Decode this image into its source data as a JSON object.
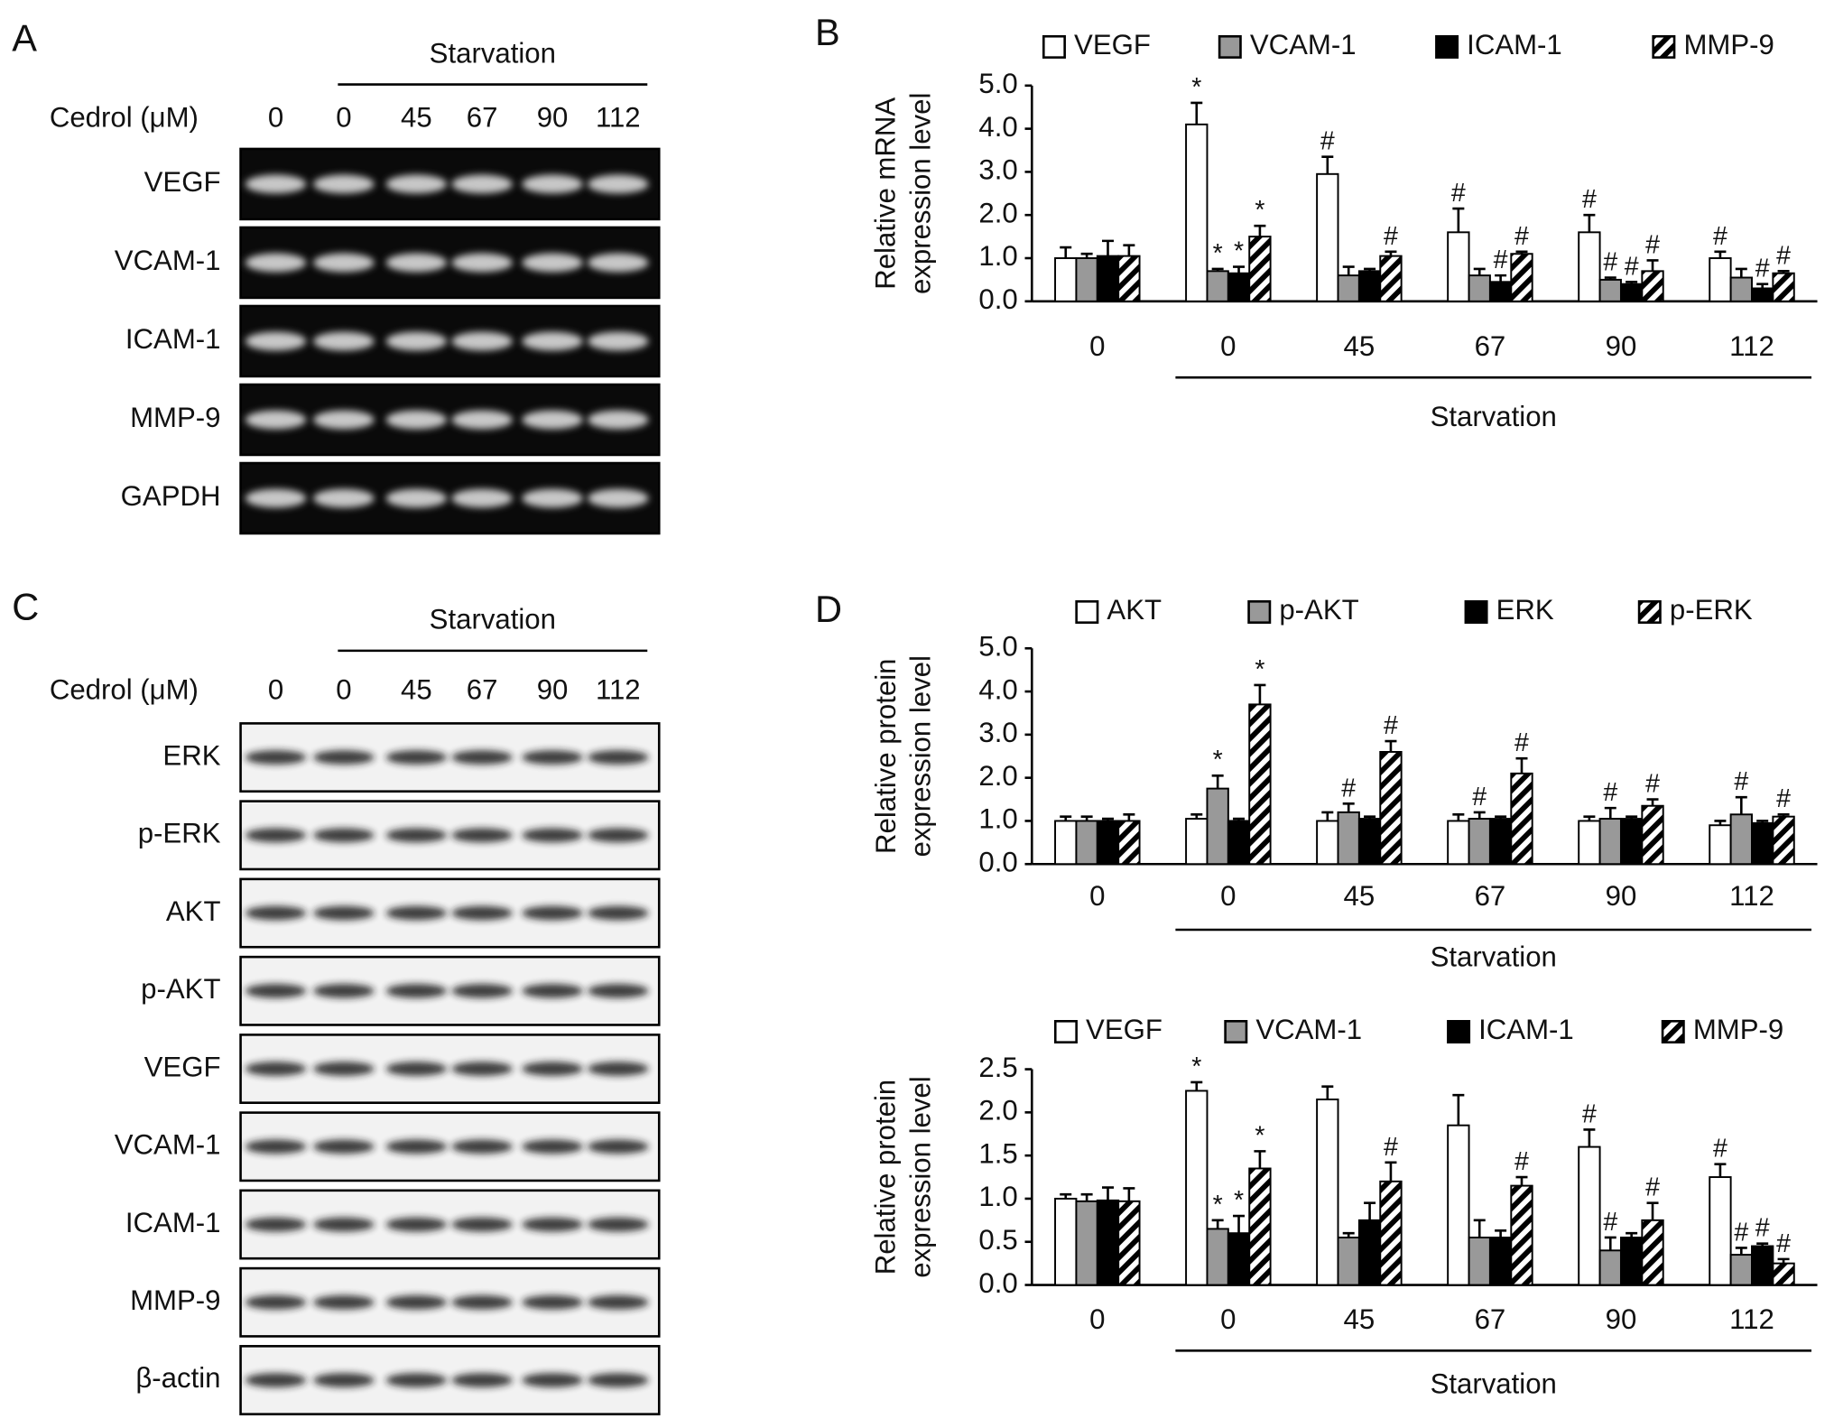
{
  "panels": [
    {
      "letter": "A",
      "header": "Starvation",
      "treatment_label": "Cedrol (μM)",
      "doses": [
        "0",
        "0",
        "45",
        "67",
        "90",
        "112"
      ],
      "bands": [
        "VEGF",
        "VCAM-1",
        "ICAM-1",
        "MMP-9",
        "GAPDH"
      ],
      "style": "dark"
    },
    {
      "letter": "C",
      "header": "Starvation",
      "treatment_label": "Cedrol (μM)",
      "doses": [
        "0",
        "0",
        "45",
        "67",
        "90",
        "112"
      ],
      "bands": [
        "ERK",
        "p-ERK",
        "AKT",
        "p-AKT",
        "VEGF",
        "VCAM-1",
        "ICAM-1",
        "MMP-9",
        "β-actin"
      ],
      "style": "light"
    }
  ],
  "chart_data": [
    {
      "type": "bar",
      "panel_label": "B",
      "y_label": [
        "Relative mRNA",
        "expression level"
      ],
      "group_label": "Starvation",
      "categories": [
        "0",
        "0",
        "45",
        "67",
        "90",
        "112"
      ],
      "ylim": [
        0,
        5
      ],
      "yticks": [
        {
          "value": 0,
          "label": "0.0"
        },
        {
          "value": 1,
          "label": "1.0"
        },
        {
          "value": 2,
          "label": "2.0"
        },
        {
          "value": 3,
          "label": "3.0"
        },
        {
          "value": 4,
          "label": "4.0"
        },
        {
          "value": 5,
          "label": "5.0"
        }
      ],
      "series": [
        {
          "name": "VEGF",
          "color": "#ffffff",
          "values": [
            1.0,
            4.1,
            2.95,
            1.6,
            1.6,
            1.0
          ],
          "errors": [
            0.25,
            0.5,
            0.4,
            0.55,
            0.4,
            0.15
          ],
          "annotations": [
            null,
            "*",
            "#",
            "#",
            "#",
            "#"
          ]
        },
        {
          "name": "VCAM-1",
          "color": "#999999",
          "values": [
            1.0,
            0.7,
            0.6,
            0.6,
            0.5,
            0.55
          ],
          "errors": [
            0.1,
            0.05,
            0.2,
            0.15,
            0.05,
            0.2
          ],
          "annotations": [
            null,
            "*",
            null,
            null,
            "#",
            null
          ]
        },
        {
          "name": "ICAM-1",
          "color": "#000000",
          "values": [
            1.05,
            0.65,
            0.7,
            0.45,
            0.4,
            0.3
          ],
          "errors": [
            0.35,
            0.15,
            0.05,
            0.15,
            0.05,
            0.1
          ],
          "annotations": [
            null,
            "*",
            null,
            "#",
            "#",
            "#"
          ]
        },
        {
          "name": "MMP-9",
          "color": "#000000",
          "pattern": "hatch",
          "values": [
            1.05,
            1.5,
            1.05,
            1.1,
            0.7,
            0.65
          ],
          "errors": [
            0.25,
            0.25,
            0.1,
            0.05,
            0.25,
            0.05
          ],
          "annotations": [
            null,
            "*",
            "#",
            "#",
            "#",
            "#"
          ]
        }
      ]
    },
    {
      "type": "bar",
      "panel_label": "D",
      "y_label": [
        "Relative protein",
        "expression level"
      ],
      "group_label": "Starvation",
      "categories": [
        "0",
        "0",
        "45",
        "67",
        "90",
        "112"
      ],
      "ylim": [
        0,
        5
      ],
      "yticks": [
        {
          "value": 0,
          "label": "0.0"
        },
        {
          "value": 1,
          "label": "1.0"
        },
        {
          "value": 2,
          "label": "2.0"
        },
        {
          "value": 3,
          "label": "3.0"
        },
        {
          "value": 4,
          "label": "4.0"
        },
        {
          "value": 5,
          "label": "5.0"
        }
      ],
      "series": [
        {
          "name": "AKT",
          "color": "#ffffff",
          "values": [
            1.0,
            1.05,
            1.0,
            1.0,
            1.0,
            0.9
          ],
          "errors": [
            0.1,
            0.1,
            0.2,
            0.15,
            0.1,
            0.1
          ],
          "annotations": [
            null,
            null,
            null,
            null,
            null,
            null
          ]
        },
        {
          "name": "p-AKT",
          "color": "#999999",
          "values": [
            1.0,
            1.75,
            1.2,
            1.05,
            1.05,
            1.15
          ],
          "errors": [
            0.1,
            0.3,
            0.2,
            0.15,
            0.25,
            0.4
          ],
          "annotations": [
            null,
            "*",
            "#",
            "#",
            "#",
            "#"
          ]
        },
        {
          "name": "ERK",
          "color": "#000000",
          "values": [
            1.0,
            1.0,
            1.05,
            1.05,
            1.05,
            0.95
          ],
          "errors": [
            0.05,
            0.05,
            0.05,
            0.05,
            0.05,
            0.05
          ],
          "annotations": [
            null,
            null,
            null,
            null,
            null,
            null
          ]
        },
        {
          "name": "p-ERK",
          "color": "#000000",
          "pattern": "hatch",
          "values": [
            1.0,
            3.7,
            2.6,
            2.1,
            1.35,
            1.1
          ],
          "errors": [
            0.15,
            0.45,
            0.25,
            0.35,
            0.15,
            0.05
          ],
          "annotations": [
            null,
            "*",
            "#",
            "#",
            "#",
            "#"
          ]
        }
      ]
    },
    {
      "type": "bar",
      "y_label": [
        "Relative protein",
        "expression level"
      ],
      "group_label": "Starvation",
      "categories": [
        "0",
        "0",
        "45",
        "67",
        "90",
        "112"
      ],
      "ylim": [
        0,
        2.5
      ],
      "yticks": [
        {
          "value": 0,
          "label": "0.0"
        },
        {
          "value": 0.5,
          "label": "0.5"
        },
        {
          "value": 1,
          "label": "1.0"
        },
        {
          "value": 1.5,
          "label": "1.5"
        },
        {
          "value": 2,
          "label": "2.0"
        },
        {
          "value": 2.5,
          "label": "2.5"
        }
      ],
      "series": [
        {
          "name": "VEGF",
          "color": "#ffffff",
          "values": [
            1.0,
            2.25,
            2.15,
            1.85,
            1.6,
            1.25
          ],
          "errors": [
            0.05,
            0.1,
            0.15,
            0.35,
            0.2,
            0.15
          ],
          "annotations": [
            null,
            "*",
            null,
            null,
            "#",
            "#"
          ]
        },
        {
          "name": "VCAM-1",
          "color": "#999999",
          "values": [
            0.97,
            0.65,
            0.55,
            0.55,
            0.4,
            0.35
          ],
          "errors": [
            0.08,
            0.1,
            0.05,
            0.2,
            0.15,
            0.08
          ],
          "annotations": [
            null,
            "*",
            null,
            null,
            "#",
            "#"
          ]
        },
        {
          "name": "ICAM-1",
          "color": "#000000",
          "values": [
            0.98,
            0.6,
            0.75,
            0.55,
            0.55,
            0.45
          ],
          "errors": [
            0.15,
            0.2,
            0.2,
            0.08,
            0.05,
            0.03
          ],
          "annotations": [
            null,
            "*",
            null,
            null,
            null,
            "#"
          ]
        },
        {
          "name": "MMP-9",
          "color": "#000000",
          "pattern": "hatch",
          "values": [
            0.97,
            1.35,
            1.2,
            1.15,
            0.75,
            0.25
          ],
          "errors": [
            0.15,
            0.2,
            0.22,
            0.1,
            0.2,
            0.05
          ],
          "annotations": [
            null,
            "*",
            "#",
            "#",
            "#",
            "#"
          ]
        }
      ]
    }
  ]
}
